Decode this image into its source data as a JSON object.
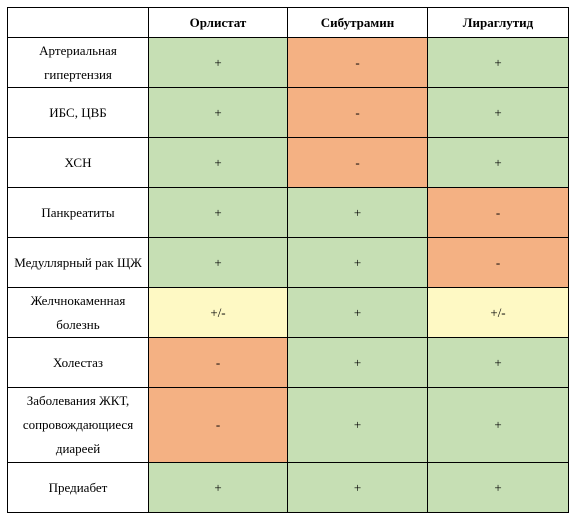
{
  "header": {
    "empty": "",
    "columns": [
      "Орлистат",
      "Сибутрамин",
      "Лираглутид"
    ]
  },
  "rows": [
    {
      "label": "Артериальная гипертензия",
      "values": [
        "+",
        "-",
        "+"
      ],
      "colors": [
        "g",
        "r",
        "g"
      ]
    },
    {
      "label": "ИБС, ЦВБ",
      "values": [
        "+",
        "-",
        "+"
      ],
      "colors": [
        "g",
        "r",
        "g"
      ]
    },
    {
      "label": "ХСН",
      "values": [
        "+",
        "-",
        "+"
      ],
      "colors": [
        "g",
        "r",
        "g"
      ]
    },
    {
      "label": "Панкреатиты",
      "values": [
        "+",
        "+",
        "-"
      ],
      "colors": [
        "g",
        "g",
        "r"
      ]
    },
    {
      "label": "Медуллярный рак ЩЖ",
      "values": [
        "+",
        "+",
        "-"
      ],
      "colors": [
        "g",
        "g",
        "r"
      ]
    },
    {
      "label": "Желчнокаменная болезнь",
      "values": [
        "+/-",
        "+",
        "+/-"
      ],
      "colors": [
        "y",
        "g",
        "y"
      ]
    },
    {
      "label": "Холестаз",
      "values": [
        "-",
        "+",
        "+"
      ],
      "colors": [
        "r",
        "g",
        "g"
      ]
    },
    {
      "label": "Заболевания ЖКТ, сопровождающиеся диареей",
      "values": [
        "-",
        "+",
        "+"
      ],
      "colors": [
        "r",
        "g",
        "g"
      ]
    },
    {
      "label": "Предиабет",
      "values": [
        "+",
        "+",
        "+"
      ],
      "colors": [
        "g",
        "g",
        "g"
      ]
    }
  ],
  "colors": {
    "green": "#c6dfb4",
    "red": "#f4b183",
    "yellow": "#fef9c4"
  }
}
